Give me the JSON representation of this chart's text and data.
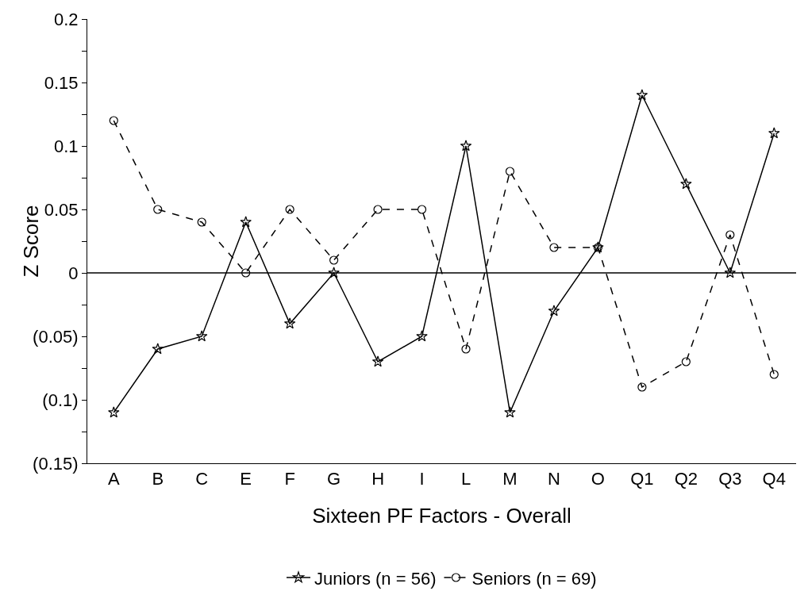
{
  "chart_data": {
    "type": "line",
    "xlabel": "Sixteen PF Factors - Overall",
    "ylabel": "Z Score",
    "categories": [
      "A",
      "B",
      "C",
      "E",
      "F",
      "G",
      "H",
      "I",
      "L",
      "M",
      "N",
      "O",
      "Q1",
      "Q2",
      "Q3",
      "Q4"
    ],
    "series": [
      {
        "name": "Juniors (n = 56)",
        "color": "#000000",
        "marker": "star",
        "line_style": "solid",
        "values": [
          -0.11,
          -0.06,
          -0.05,
          0.04,
          -0.04,
          0,
          -0.07,
          -0.05,
          0.1,
          -0.11,
          -0.03,
          0.02,
          0.14,
          0.07,
          0,
          0.11
        ]
      },
      {
        "name": "Seniors (n = 69)",
        "color": "#000000",
        "marker": "circle",
        "line_style": "dashed",
        "values": [
          0.12,
          0.05,
          0.04,
          0,
          0.05,
          0.01,
          0.05,
          0.05,
          -0.06,
          0.08,
          0.02,
          0.02,
          -0.09,
          -0.07,
          0.03,
          -0.08
        ]
      }
    ],
    "ylim": [
      -0.15,
      0.2
    ],
    "yticks": [
      {
        "value": -0.15,
        "label": "(0.15)"
      },
      {
        "value": -0.125,
        "label": null
      },
      {
        "value": -0.1,
        "label": "(0.1)"
      },
      {
        "value": -0.075,
        "label": null
      },
      {
        "value": -0.05,
        "label": "(0.05)"
      },
      {
        "value": -0.025,
        "label": null
      },
      0,
      {
        "value": 0.025,
        "label": null
      },
      0.05,
      {
        "value": 0.075,
        "label": null
      },
      0.1,
      {
        "value": 0.125,
        "label": null
      },
      0.15,
      {
        "value": 0.175,
        "label": null
      },
      0.2
    ],
    "ref_lines": [
      {
        "axis": "y",
        "value": 0,
        "color": "#000000",
        "line_style": "solid"
      }
    ],
    "grid": false,
    "legend": "bottom"
  }
}
